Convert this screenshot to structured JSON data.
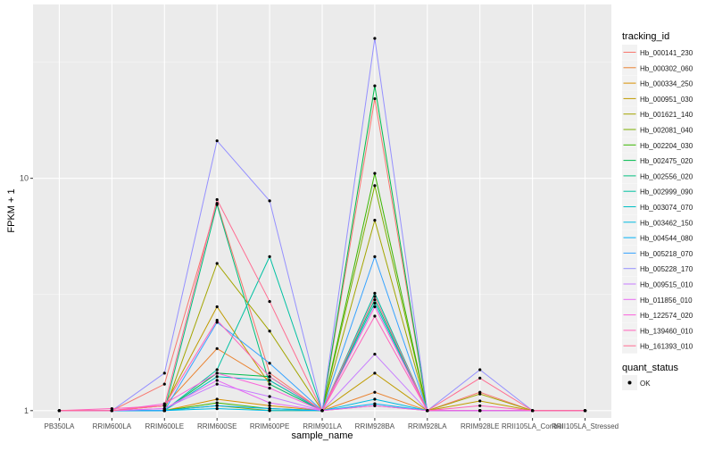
{
  "chart_data": {
    "type": "line",
    "title": "",
    "xlabel": "sample_name",
    "ylabel": "FPKM + 1",
    "y_scale": "log10",
    "ylim": [
      0.93,
      56
    ],
    "y_ticks": [
      {
        "value": 1,
        "label": "1"
      },
      {
        "value": 10,
        "label": "10"
      }
    ],
    "categories": [
      "PB350LA",
      "RRIM600LA",
      "RRIM600LE",
      "RRIM600SE",
      "RRIM600PE",
      "RRIM901LA",
      "RRIM928BA",
      "RRIM928LA",
      "RRIM928LE",
      "RRII105LA_Control",
      "RRII105LA_Stressed"
    ],
    "legend": {
      "title": "tracking_id",
      "position": "right",
      "quant_title": "quant_status",
      "quant_label": "OK"
    },
    "series": [
      {
        "name": "Hb_000141_230",
        "color": "#F8766D",
        "values": [
          1,
          1,
          1.3,
          7.8,
          1.45,
          1,
          22,
          1,
          1.2,
          1,
          1
        ]
      },
      {
        "name": "Hb_000302_060",
        "color": "#EA8331",
        "values": [
          1,
          1,
          1.05,
          1.85,
          1.35,
          1,
          1.2,
          1,
          1,
          1,
          1
        ]
      },
      {
        "name": "Hb_000334_250",
        "color": "#D89000",
        "values": [
          1,
          1,
          1,
          1.12,
          1.05,
          1,
          1.05,
          1,
          1,
          1,
          1
        ]
      },
      {
        "name": "Hb_000951_030",
        "color": "#C09B00",
        "values": [
          1,
          1,
          1.05,
          2.8,
          1.3,
          1,
          1.45,
          1,
          1.1,
          1,
          1
        ]
      },
      {
        "name": "Hb_001621_140",
        "color": "#A3A500",
        "values": [
          1,
          1,
          1,
          4.3,
          2.2,
          1,
          6.6,
          1,
          1.18,
          1,
          1
        ]
      },
      {
        "name": "Hb_002081_040",
        "color": "#7CAE00",
        "values": [
          1,
          1,
          1,
          1.05,
          1.0,
          1,
          9.3,
          1,
          1,
          1,
          1
        ]
      },
      {
        "name": "Hb_002204_030",
        "color": "#39B600",
        "values": [
          1,
          1,
          1,
          1.08,
          1.02,
          1,
          10.5,
          1,
          1,
          1,
          1
        ]
      },
      {
        "name": "Hb_002475_020",
        "color": "#00BB4E",
        "values": [
          1,
          1,
          1,
          1.45,
          1.4,
          1,
          25,
          1,
          1,
          1,
          1
        ]
      },
      {
        "name": "Hb_002556_020",
        "color": "#00BF7D",
        "values": [
          1,
          1,
          1,
          7.7,
          1.3,
          1,
          3.0,
          1,
          1,
          1,
          1
        ]
      },
      {
        "name": "Hb_002999_090",
        "color": "#00C1A3",
        "values": [
          1,
          1,
          1,
          1.5,
          4.6,
          1,
          3.2,
          1,
          1,
          1,
          1
        ]
      },
      {
        "name": "Hb_003074_070",
        "color": "#00BFC4",
        "values": [
          1,
          1,
          1,
          1.4,
          1.35,
          1,
          2.9,
          1,
          1,
          1,
          1
        ]
      },
      {
        "name": "Hb_003462_150",
        "color": "#00BAE0",
        "values": [
          1,
          1,
          1,
          1.02,
          1.0,
          1,
          1.12,
          1,
          1,
          1,
          1
        ]
      },
      {
        "name": "Hb_004544_080",
        "color": "#00B0F6",
        "values": [
          1,
          1,
          1,
          1.05,
          1.02,
          1,
          1.07,
          1,
          1,
          1,
          1
        ]
      },
      {
        "name": "Hb_005218_070",
        "color": "#35A2FF",
        "values": [
          1,
          1,
          1,
          2.4,
          1.6,
          1,
          4.6,
          1,
          1,
          1,
          1
        ]
      },
      {
        "name": "Hb_005228_170",
        "color": "#9590FF",
        "values": [
          1,
          1,
          1.45,
          14.5,
          8.0,
          1,
          40,
          1,
          1.5,
          1,
          1
        ]
      },
      {
        "name": "Hb_009515_010",
        "color": "#C77CFF",
        "values": [
          1,
          1,
          1.02,
          1.3,
          1.15,
          1,
          1.75,
          1,
          1,
          1,
          1
        ]
      },
      {
        "name": "Hb_011856_010",
        "color": "#E76BF3",
        "values": [
          1,
          1,
          1.02,
          1.35,
          1.08,
          1,
          1.05,
          1,
          1,
          1,
          1
        ]
      },
      {
        "name": "Hb_122574_020",
        "color": "#FA62DB",
        "values": [
          1,
          1,
          1.07,
          1.45,
          1.25,
          1,
          2.8,
          1,
          1,
          1,
          1
        ]
      },
      {
        "name": "Hb_139460_010",
        "color": "#FF62BC",
        "values": [
          1,
          1.02,
          1.05,
          2.45,
          1.4,
          1,
          2.55,
          1,
          1.05,
          1,
          1
        ]
      },
      {
        "name": "Hb_161393_010",
        "color": "#FF6C91",
        "values": [
          1,
          1,
          1.05,
          8.1,
          2.95,
          1,
          3.1,
          1,
          1.38,
          1,
          1
        ]
      }
    ]
  }
}
